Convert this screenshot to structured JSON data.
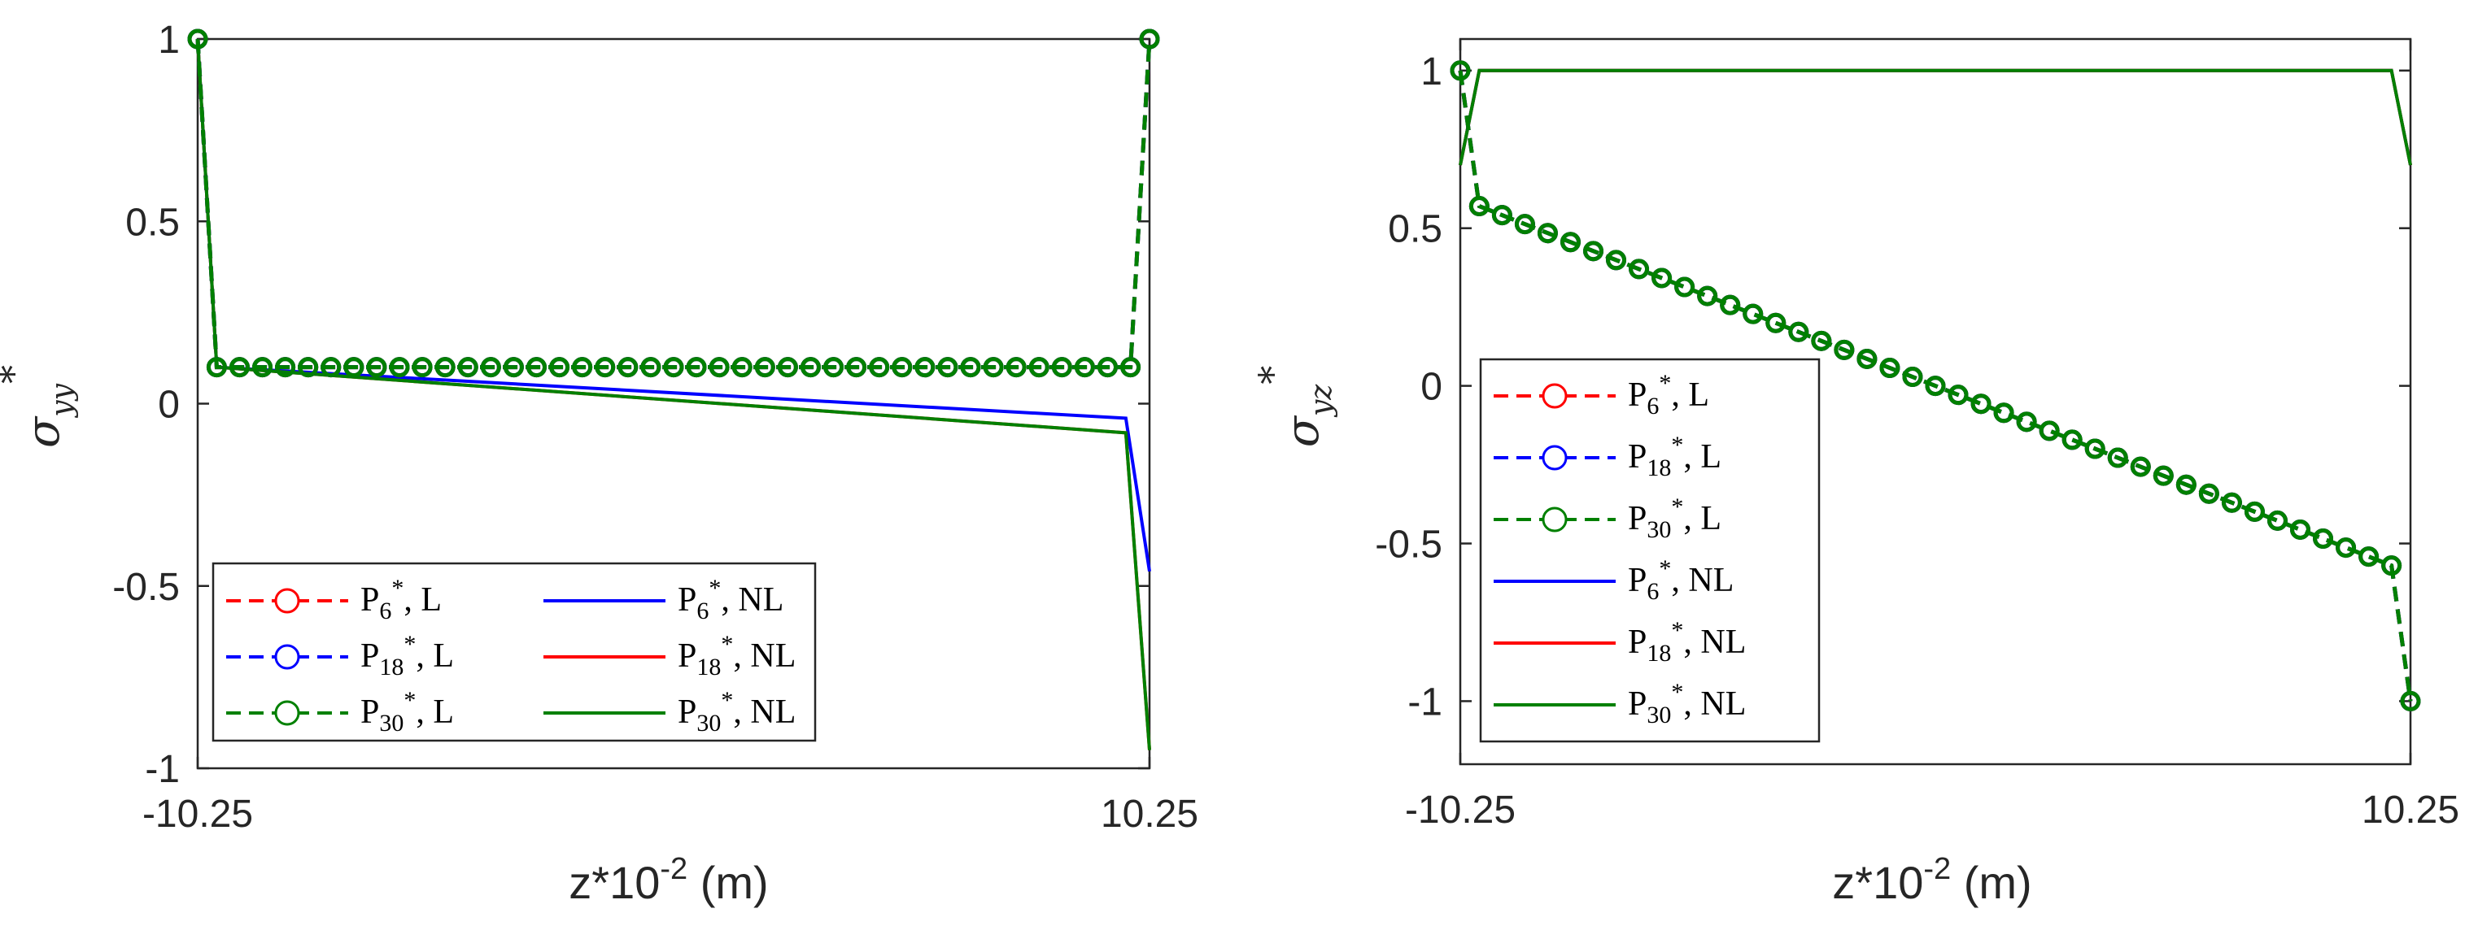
{
  "chart_data": [
    {
      "type": "line",
      "xlabel_base": "z*10",
      "xlabel_exp": "-2",
      "xlabel_unit": " (m)",
      "ylabel_symbol": "σ",
      "ylabel_sub": "yy",
      "ylabel_sup": "*",
      "xlim": [
        -10.25,
        10.25
      ],
      "ylim": [
        -1,
        1
      ],
      "xticks": [
        "-10.25",
        "10.25"
      ],
      "xtick_values": [
        -10.25,
        10.25
      ],
      "yticks": [
        "1",
        "0.5",
        "0",
        "-0.5",
        "-1"
      ],
      "ytick_values": [
        1,
        0.5,
        0,
        -0.5,
        -1
      ],
      "legend_position": "bottom-left",
      "series": [
        {
          "name": "P6*, L",
          "base": "P",
          "sub": "6",
          "tail": ", L",
          "color": "#ff0000",
          "style": "dashed-circle",
          "kind": "flat",
          "x": [
            -10.25,
            -9.84,
            9.84,
            10.25
          ],
          "y": [
            1,
            0.1,
            0.1,
            1
          ],
          "markers_n": 41
        },
        {
          "name": "P18*, L",
          "base": "P",
          "sub": "18",
          "tail": ", L",
          "color": "#0000ff",
          "style": "dashed-circle",
          "kind": "flat",
          "x": [
            -10.25,
            -9.84,
            9.84,
            10.25
          ],
          "y": [
            1,
            0.1,
            0.1,
            1
          ],
          "markers_n": 41
        },
        {
          "name": "P30*, L",
          "base": "P",
          "sub": "30",
          "tail": ", L",
          "color": "#008000",
          "style": "dashed-circle",
          "kind": "flat",
          "x": [
            -10.25,
            -9.84,
            9.84,
            10.25
          ],
          "y": [
            1,
            0.1,
            0.1,
            1
          ],
          "markers_n": 41
        },
        {
          "name": "P6*, NL",
          "base": "P",
          "sub": "6",
          "tail": ", NL",
          "color": "#0000ff",
          "style": "solid",
          "x": [
            -10.25,
            -9.84,
            9.74,
            10.25
          ],
          "y": [
            1,
            0.1,
            -0.04,
            -0.46
          ]
        },
        {
          "name": "P18*, NL",
          "base": "P",
          "sub": "18",
          "tail": ", NL",
          "color": "#ff0000",
          "style": "solid",
          "x": [
            -10.25,
            -9.84,
            9.74,
            10.25
          ],
          "y": [
            1,
            0.1,
            -0.08,
            -0.95
          ]
        },
        {
          "name": "P30*, NL",
          "base": "P",
          "sub": "30",
          "tail": ", NL",
          "color": "#008000",
          "style": "solid",
          "x": [
            -10.25,
            -9.84,
            9.74,
            10.25
          ],
          "y": [
            1,
            0.1,
            -0.08,
            -0.95
          ]
        }
      ]
    },
    {
      "type": "line",
      "xlabel_base": "z*10",
      "xlabel_exp": "-2",
      "xlabel_unit": " (m)",
      "ylabel_symbol": "σ",
      "ylabel_sub": "yz",
      "ylabel_sup": "*",
      "xlim": [
        -10.25,
        10.25
      ],
      "ylim": [
        -1.2,
        1.1
      ],
      "xticks": [
        "-10.25",
        "10.25"
      ],
      "xtick_values": [
        -10.25,
        10.25
      ],
      "yticks": [
        "1",
        "0.5",
        "0",
        "-0.5",
        "-1"
      ],
      "ytick_values": [
        1,
        0.5,
        0,
        -0.5,
        -1
      ],
      "legend_position": "left",
      "series": [
        {
          "name": "P6*, L",
          "base": "P",
          "sub": "6",
          "tail": ", L",
          "color": "#ff0000",
          "style": "dashed-circle",
          "kind": "linear",
          "x": [
            -10.25,
            -9.84,
            9.84,
            10.25
          ],
          "y": [
            1,
            0.57,
            -0.57,
            -1
          ],
          "markers_n": 41
        },
        {
          "name": "P18*, L",
          "base": "P",
          "sub": "18",
          "tail": ", L",
          "color": "#0000ff",
          "style": "dashed-circle",
          "kind": "linear",
          "x": [
            -10.25,
            -9.84,
            9.84,
            10.25
          ],
          "y": [
            1,
            0.57,
            -0.57,
            -1
          ],
          "markers_n": 41
        },
        {
          "name": "P30*, L",
          "base": "P",
          "sub": "30",
          "tail": ", L",
          "color": "#008000",
          "style": "dashed-circle",
          "kind": "linear",
          "x": [
            -10.25,
            -9.84,
            9.84,
            10.25
          ],
          "y": [
            1,
            0.57,
            -0.57,
            -1
          ],
          "markers_n": 41
        },
        {
          "name": "P6*, NL",
          "base": "P",
          "sub": "6",
          "tail": ", NL",
          "color": "#0000ff",
          "style": "solid",
          "x": [
            -10.25,
            -9.84,
            9.84,
            10.25
          ],
          "y": [
            0.7,
            1,
            1,
            0.7
          ]
        },
        {
          "name": "P18*, NL",
          "base": "P",
          "sub": "18",
          "tail": ", NL",
          "color": "#ff0000",
          "style": "solid",
          "x": [
            -10.25,
            -9.84,
            9.84,
            10.25
          ],
          "y": [
            0.7,
            1,
            1,
            0.7
          ]
        },
        {
          "name": "P30*, NL",
          "base": "P",
          "sub": "30",
          "tail": ", NL",
          "color": "#008000",
          "style": "solid",
          "x": [
            -10.25,
            -9.84,
            9.84,
            10.25
          ],
          "y": [
            0.7,
            1,
            1,
            0.7
          ]
        }
      ]
    }
  ]
}
